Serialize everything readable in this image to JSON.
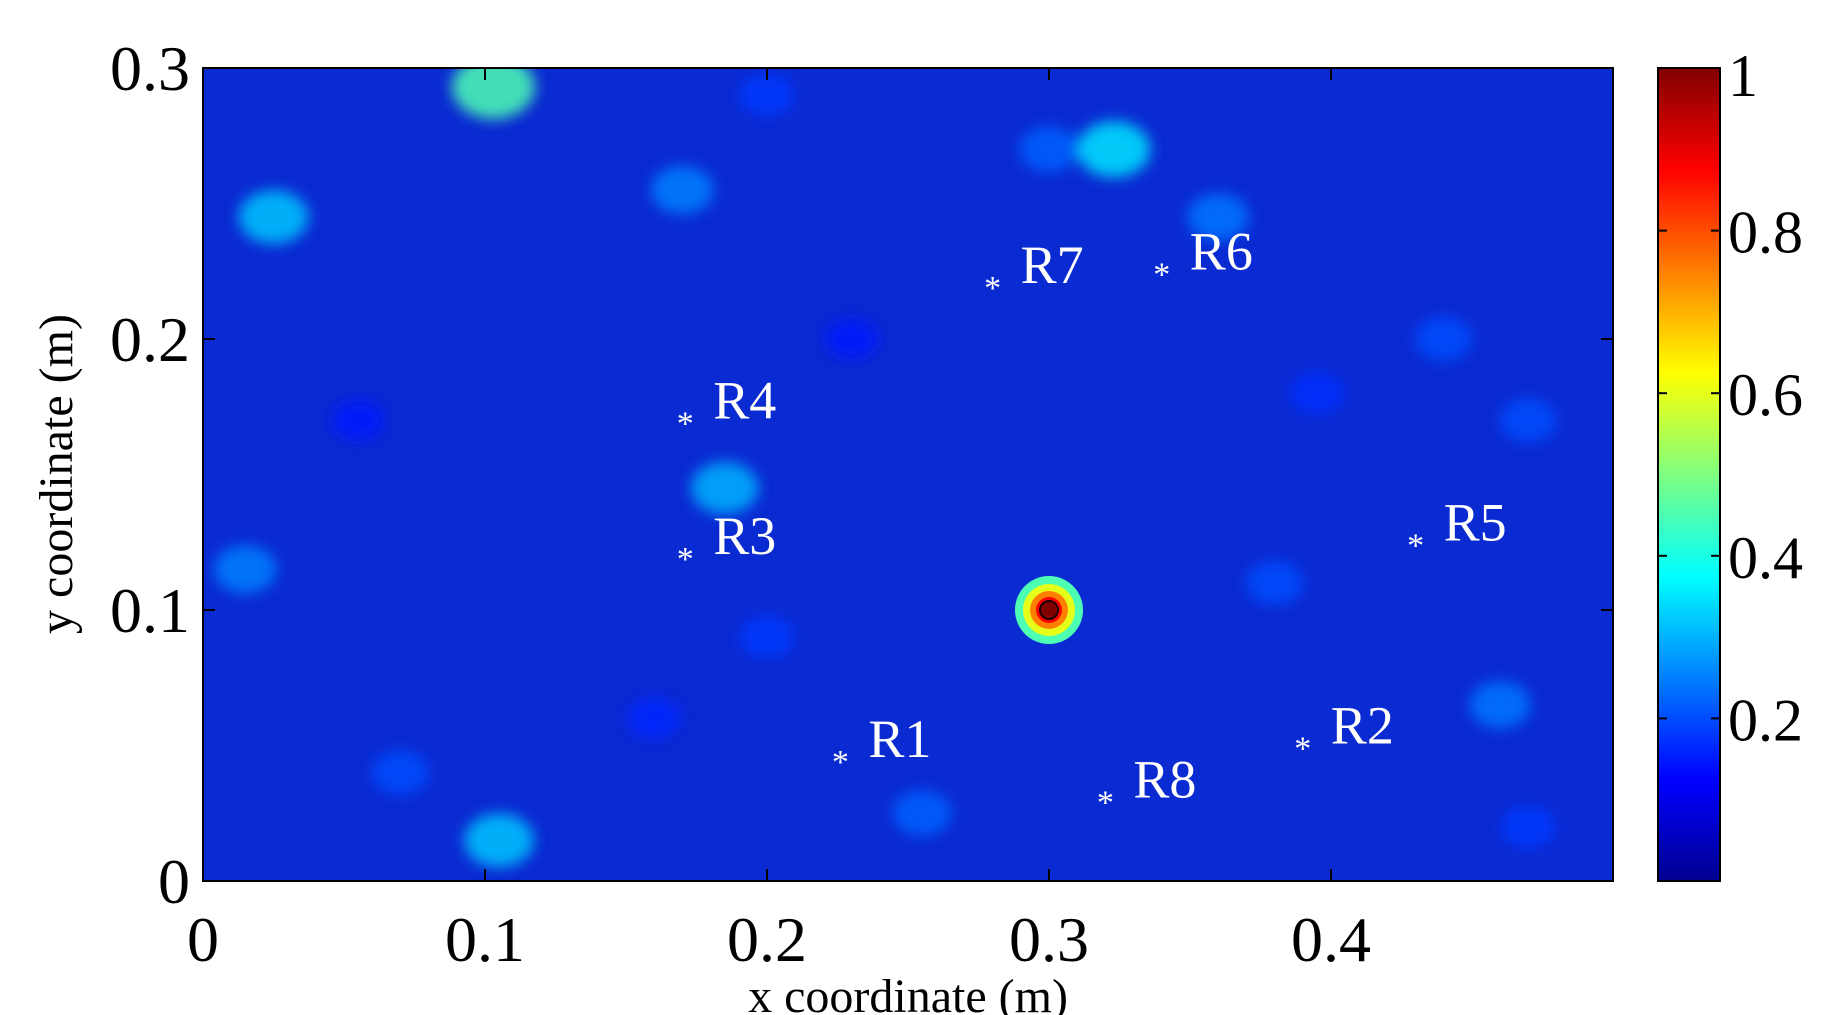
{
  "chart_data": {
    "type": "heatmap",
    "title": "",
    "xlabel": "x coordinate (m)",
    "ylabel": "y coordinate (m)",
    "xlim": [
      0,
      0.5
    ],
    "ylim": [
      0,
      0.3
    ],
    "x_ticks": [
      0,
      0.1,
      0.2,
      0.3,
      0.4
    ],
    "x_tick_labels": [
      "0",
      "0.1",
      "0.2",
      "0.3",
      "0.4"
    ],
    "y_ticks": [
      0,
      0.1,
      0.2,
      0.3
    ],
    "y_tick_labels": [
      "0",
      "0.1",
      "0.2",
      "0.3"
    ],
    "colormap": "jet",
    "colorbar": {
      "range": [
        0,
        1
      ],
      "ticks": [
        0.2,
        0.4,
        0.6,
        0.8,
        1
      ],
      "tick_labels": [
        "0.2",
        "0.4",
        "0.6",
        "0.8",
        "1"
      ]
    },
    "peak": {
      "x": 0.3,
      "y": 0.1,
      "value": 1.0
    },
    "bright_spots": [
      {
        "x": 0.103,
        "y": 0.293,
        "value": 0.45
      },
      {
        "x": 0.323,
        "y": 0.27,
        "value": 0.35
      },
      {
        "x": 0.025,
        "y": 0.245,
        "value": 0.32
      },
      {
        "x": 0.105,
        "y": 0.015,
        "value": 0.32
      },
      {
        "x": 0.185,
        "y": 0.145,
        "value": 0.3
      },
      {
        "x": 0.17,
        "y": 0.255,
        "value": 0.25
      },
      {
        "x": 0.015,
        "y": 0.115,
        "value": 0.25
      },
      {
        "x": 0.46,
        "y": 0.065,
        "value": 0.24
      },
      {
        "x": 0.36,
        "y": 0.245,
        "value": 0.24
      },
      {
        "x": 0.3,
        "y": 0.27,
        "value": 0.22
      },
      {
        "x": 0.255,
        "y": 0.025,
        "value": 0.22
      },
      {
        "x": 0.47,
        "y": 0.17,
        "value": 0.2
      },
      {
        "x": 0.44,
        "y": 0.2,
        "value": 0.2
      },
      {
        "x": 0.2,
        "y": 0.09,
        "value": 0.18
      },
      {
        "x": 0.055,
        "y": 0.17,
        "value": 0.15
      },
      {
        "x": 0.23,
        "y": 0.2,
        "value": 0.15
      },
      {
        "x": 0.38,
        "y": 0.11,
        "value": 0.2
      },
      {
        "x": 0.395,
        "y": 0.18,
        "value": 0.17
      },
      {
        "x": 0.16,
        "y": 0.06,
        "value": 0.16
      },
      {
        "x": 0.07,
        "y": 0.04,
        "value": 0.2
      },
      {
        "x": 0.47,
        "y": 0.02,
        "value": 0.18
      },
      {
        "x": 0.2,
        "y": 0.29,
        "value": 0.18
      }
    ],
    "markers": [
      {
        "label": "R1",
        "x": 0.226,
        "y": 0.045
      },
      {
        "label": "R2",
        "x": 0.39,
        "y": 0.05
      },
      {
        "label": "R3",
        "x": 0.171,
        "y": 0.12
      },
      {
        "label": "R4",
        "x": 0.171,
        "y": 0.17
      },
      {
        "label": "R5",
        "x": 0.43,
        "y": 0.125
      },
      {
        "label": "R6",
        "x": 0.34,
        "y": 0.225
      },
      {
        "label": "R7",
        "x": 0.28,
        "y": 0.22
      },
      {
        "label": "R8",
        "x": 0.32,
        "y": 0.03
      }
    ]
  }
}
